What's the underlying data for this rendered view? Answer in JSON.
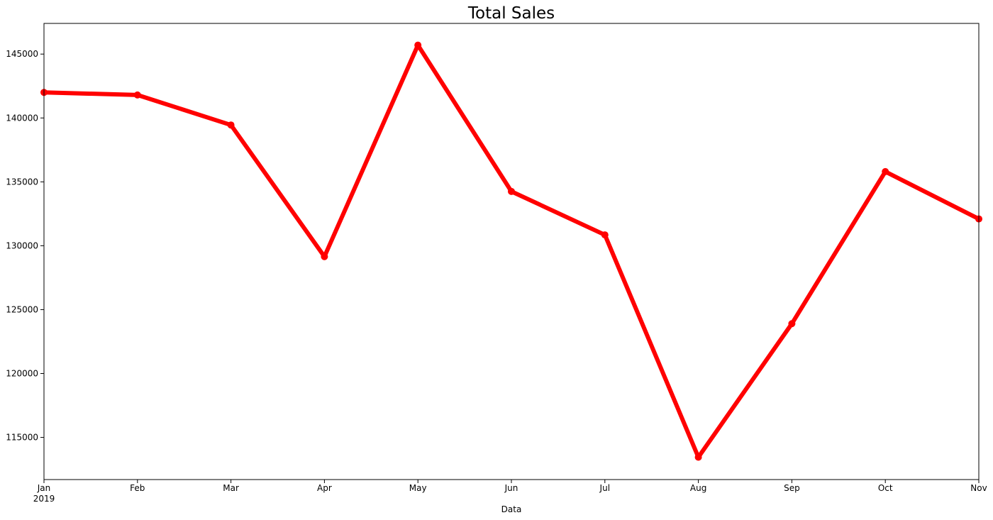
{
  "chart_data": {
    "type": "line",
    "title": "Total Sales",
    "xlabel": "Data",
    "ylabel": "",
    "x": [
      "Jan",
      "Feb",
      "Mar",
      "Apr",
      "May",
      "Jun",
      "Jul",
      "Aug",
      "Sep",
      "Oct",
      "Nov"
    ],
    "x_year_label": "2019",
    "series": [
      {
        "values": [
          142000,
          141800,
          139450,
          129150,
          145700,
          134250,
          130850,
          113450,
          123900,
          135800,
          132100
        ],
        "color": "#ff0000"
      }
    ],
    "ylim": [
      111700,
      147400
    ],
    "yticks": [
      115000,
      120000,
      125000,
      130000,
      135000,
      140000,
      145000
    ],
    "grid": false,
    "legend": "none"
  }
}
